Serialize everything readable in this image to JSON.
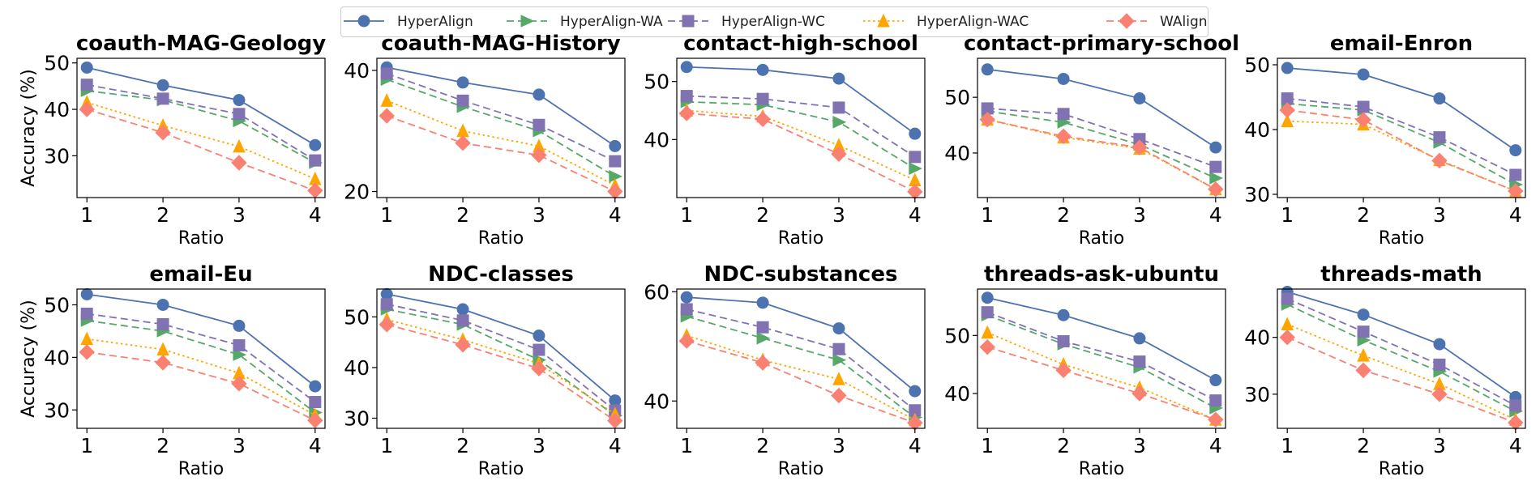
{
  "legend": {
    "placement": "top-center",
    "entries": [
      {
        "name": "HyperAlign",
        "color": "#4C72B0",
        "marker": "circle",
        "dash": "solid"
      },
      {
        "name": "HyperAlign-WA",
        "color": "#55A868",
        "marker": "triangle-right",
        "dash": "dashed"
      },
      {
        "name": "HyperAlign-WC",
        "color": "#8172B2",
        "marker": "square",
        "dash": "dashed"
      },
      {
        "name": "HyperAlign-WAC",
        "color": "#FFA500",
        "marker": "triangle-up",
        "dash": "dotted"
      },
      {
        "name": "WAlign",
        "color": "#FA8072",
        "marker": "diamond",
        "dash": "dashed"
      }
    ]
  },
  "chart_data": [
    {
      "type": "line",
      "title": "coauth-MAG-Geology",
      "xlabel": "Ratio",
      "ylabel": "Accuracy (%)",
      "x": [
        1,
        2,
        3,
        4
      ],
      "yticks": [
        30,
        40,
        50
      ],
      "ylim": [
        21,
        51
      ],
      "series": [
        {
          "name": "HyperAlign",
          "values": [
            49,
            45.2,
            42,
            32.3
          ]
        },
        {
          "name": "HyperAlign-WA",
          "values": [
            44,
            42,
            37.5,
            28.5
          ]
        },
        {
          "name": "HyperAlign-WC",
          "values": [
            45.3,
            42.3,
            39,
            29
          ]
        },
        {
          "name": "HyperAlign-WAC",
          "values": [
            41.5,
            36.5,
            32,
            25
          ]
        },
        {
          "name": "WAlign",
          "values": [
            40,
            35,
            28.5,
            22.5
          ]
        }
      ]
    },
    {
      "type": "line",
      "title": "coauth-MAG-History",
      "xlabel": "Ratio",
      "ylabel": "",
      "x": [
        1,
        2,
        3,
        4
      ],
      "yticks": [
        20,
        40
      ],
      "ylim": [
        19,
        42
      ],
      "series": [
        {
          "name": "HyperAlign",
          "values": [
            40.5,
            38,
            36,
            27.5
          ]
        },
        {
          "name": "HyperAlign-WA",
          "values": [
            38.5,
            34,
            30,
            22.5
          ]
        },
        {
          "name": "HyperAlign-WC",
          "values": [
            39.5,
            35,
            31,
            25
          ]
        },
        {
          "name": "HyperAlign-WAC",
          "values": [
            35,
            30,
            27.5,
            21
          ]
        },
        {
          "name": "WAlign",
          "values": [
            32.5,
            28,
            26,
            20
          ]
        }
      ]
    },
    {
      "type": "line",
      "title": "contact-high-school",
      "xlabel": "Ratio",
      "ylabel": "",
      "x": [
        1,
        2,
        3,
        4
      ],
      "yticks": [
        40,
        50
      ],
      "ylim": [
        30,
        54
      ],
      "series": [
        {
          "name": "HyperAlign",
          "values": [
            52.5,
            52,
            50.5,
            41
          ]
        },
        {
          "name": "HyperAlign-WA",
          "values": [
            46.5,
            46,
            43,
            35
          ]
        },
        {
          "name": "HyperAlign-WC",
          "values": [
            47.5,
            47,
            45.5,
            37
          ]
        },
        {
          "name": "HyperAlign-WAC",
          "values": [
            45,
            44,
            39,
            33
          ]
        },
        {
          "name": "WAlign",
          "values": [
            44.5,
            43.5,
            37.5,
            31
          ]
        }
      ]
    },
    {
      "type": "line",
      "title": "contact-primary-school",
      "xlabel": "Ratio",
      "ylabel": "",
      "x": [
        1,
        2,
        3,
        4
      ],
      "yticks": [
        40,
        50
      ],
      "ylim": [
        32,
        57
      ],
      "series": [
        {
          "name": "HyperAlign",
          "values": [
            55,
            53.3,
            49.8,
            41
          ]
        },
        {
          "name": "HyperAlign-WA",
          "values": [
            47.5,
            45.5,
            41.5,
            35.5
          ]
        },
        {
          "name": "HyperAlign-WC",
          "values": [
            48,
            47,
            42.5,
            37.5
          ]
        },
        {
          "name": "HyperAlign-WAC",
          "values": [
            46,
            42.8,
            40.8,
            33.5
          ]
        },
        {
          "name": "WAlign",
          "values": [
            46,
            43,
            41,
            33.5
          ]
        }
      ]
    },
    {
      "type": "line",
      "title": "email-Enron",
      "xlabel": "Ratio",
      "ylabel": "",
      "x": [
        1,
        2,
        3,
        4
      ],
      "yticks": [
        30,
        40,
        50
      ],
      "ylim": [
        29.5,
        51
      ],
      "series": [
        {
          "name": "HyperAlign",
          "values": [
            49.5,
            48.5,
            44.8,
            36.8
          ]
        },
        {
          "name": "HyperAlign-WA",
          "values": [
            44,
            43,
            38,
            31.5
          ]
        },
        {
          "name": "HyperAlign-WC",
          "values": [
            44.8,
            43.5,
            38.8,
            33
          ]
        },
        {
          "name": "HyperAlign-WAC",
          "values": [
            41.3,
            40.8,
            35.3,
            30.5
          ]
        },
        {
          "name": "WAlign",
          "values": [
            43,
            41.5,
            35.2,
            30.5
          ]
        }
      ]
    },
    {
      "type": "line",
      "title": "email-Eu",
      "xlabel": "Ratio",
      "ylabel": "Accuracy (%)",
      "x": [
        1,
        2,
        3,
        4
      ],
      "yticks": [
        30,
        40,
        50
      ],
      "ylim": [
        26.5,
        53
      ],
      "series": [
        {
          "name": "HyperAlign",
          "values": [
            52,
            50,
            46,
            34.5
          ]
        },
        {
          "name": "HyperAlign-WA",
          "values": [
            47,
            45,
            40.5,
            29.5
          ]
        },
        {
          "name": "HyperAlign-WC",
          "values": [
            48.3,
            46.3,
            42.3,
            31.5
          ]
        },
        {
          "name": "HyperAlign-WAC",
          "values": [
            43.5,
            41.5,
            37,
            29
          ]
        },
        {
          "name": "WAlign",
          "values": [
            41,
            39,
            35,
            28
          ]
        }
      ]
    },
    {
      "type": "line",
      "title": "NDC-classes",
      "xlabel": "Ratio",
      "ylabel": "",
      "x": [
        1,
        2,
        3,
        4
      ],
      "yticks": [
        30,
        40,
        50
      ],
      "ylim": [
        28,
        55.5
      ],
      "series": [
        {
          "name": "HyperAlign",
          "values": [
            54.5,
            51.5,
            46.3,
            33.5
          ]
        },
        {
          "name": "HyperAlign-WA",
          "values": [
            51.5,
            48.5,
            41.5,
            30.5
          ]
        },
        {
          "name": "HyperAlign-WC",
          "values": [
            52.5,
            49.3,
            43.5,
            31.5
          ]
        },
        {
          "name": "HyperAlign-WAC",
          "values": [
            49.5,
            45.5,
            40.8,
            30.8
          ]
        },
        {
          "name": "WAlign",
          "values": [
            48.5,
            44.5,
            39.8,
            29.5
          ]
        }
      ]
    },
    {
      "type": "line",
      "title": "NDC-substances",
      "xlabel": "Ratio",
      "ylabel": "",
      "x": [
        1,
        2,
        3,
        4
      ],
      "yticks": [
        40,
        60
      ],
      "ylim": [
        35,
        60.5
      ],
      "series": [
        {
          "name": "HyperAlign",
          "values": [
            59,
            58,
            53.3,
            41.8
          ]
        },
        {
          "name": "HyperAlign-WA",
          "values": [
            55.5,
            51.5,
            47.5,
            37
          ]
        },
        {
          "name": "HyperAlign-WC",
          "values": [
            56.8,
            53.5,
            49.5,
            38.3
          ]
        },
        {
          "name": "HyperAlign-WAC",
          "values": [
            52,
            47.5,
            44,
            36.5
          ]
        },
        {
          "name": "WAlign",
          "values": [
            51,
            47,
            41,
            36
          ]
        }
      ]
    },
    {
      "type": "line",
      "title": "threads-ask-ubuntu",
      "xlabel": "Ratio",
      "ylabel": "",
      "x": [
        1,
        2,
        3,
        4
      ],
      "yticks": [
        40,
        50
      ],
      "ylim": [
        34,
        58
      ],
      "series": [
        {
          "name": "HyperAlign",
          "values": [
            56.5,
            53.5,
            49.5,
            42.3
          ]
        },
        {
          "name": "HyperAlign-WA",
          "values": [
            53.5,
            48.5,
            44.5,
            37.5
          ]
        },
        {
          "name": "HyperAlign-WC",
          "values": [
            54,
            49,
            45.5,
            38.8
          ]
        },
        {
          "name": "HyperAlign-WAC",
          "values": [
            50.5,
            45,
            41,
            35.5
          ]
        },
        {
          "name": "WAlign",
          "values": [
            48,
            44,
            40,
            35.5
          ]
        }
      ]
    },
    {
      "type": "line",
      "title": "threads-math",
      "xlabel": "Ratio",
      "ylabel": "",
      "x": [
        1,
        2,
        3,
        4
      ],
      "yticks": [
        30,
        40
      ],
      "ylim": [
        24,
        48.5
      ],
      "series": [
        {
          "name": "HyperAlign",
          "values": [
            48,
            44,
            38.8,
            29.5
          ]
        },
        {
          "name": "HyperAlign-WA",
          "values": [
            45.8,
            39.5,
            34,
            27
          ]
        },
        {
          "name": "HyperAlign-WC",
          "values": [
            46.8,
            41,
            35.2,
            28
          ]
        },
        {
          "name": "HyperAlign-WAC",
          "values": [
            42.3,
            36.8,
            31.8,
            25.5
          ]
        },
        {
          "name": "WAlign",
          "values": [
            40,
            34.2,
            30,
            25
          ]
        }
      ]
    }
  ]
}
